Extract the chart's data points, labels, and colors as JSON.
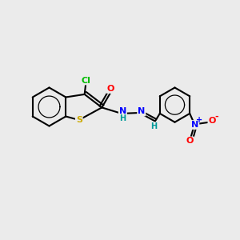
{
  "background_color": "#ebebeb",
  "bond_color": "#000000",
  "bond_width": 1.5,
  "atom_colors": {
    "C": "#000000",
    "H": "#009999",
    "N": "#0000ff",
    "O": "#ff0000",
    "S": "#ccaa00",
    "Cl": "#00bb00"
  },
  "figsize": [
    3.0,
    3.0
  ],
  "dpi": 100,
  "xlim": [
    0,
    10
  ],
  "ylim": [
    0,
    10
  ]
}
